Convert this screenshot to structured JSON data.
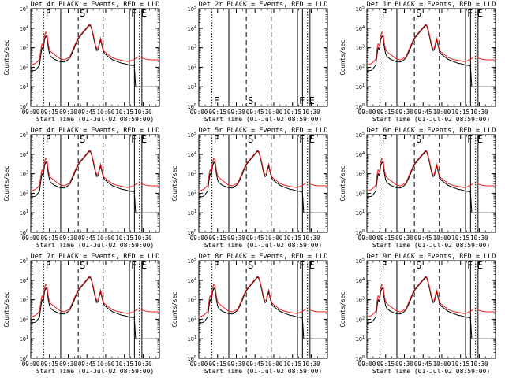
{
  "chart_data": [
    {
      "type": "line",
      "title": "Det 4r BLACK = Events, RED = LLD",
      "ylabel": "Counts/sec",
      "xlabel": "Start Time (01-Jul-02 08:59:00)",
      "has_data": true
    },
    {
      "type": "line",
      "title": "Det 2r BLACK = Events, RED = LLD",
      "ylabel": "",
      "xlabel": "Start Time (01-Jul-02 08:59:00)",
      "has_data": false
    },
    {
      "type": "line",
      "title": "Det 1r BLACK = Events, RED = LLD",
      "ylabel": "Counts/sec",
      "xlabel": "Start Time (01-Jul-02 08:59:00)",
      "has_data": true
    },
    {
      "type": "line",
      "title": "Det 4r BLACK = Events, RED = LLD",
      "ylabel": "Counts/sec",
      "xlabel": "Start Time (01-Jul-02 08:59:00)",
      "has_data": true
    },
    {
      "type": "line",
      "title": "Det 5r BLACK = Events, RED = LLD",
      "ylabel": "Counts/sec",
      "xlabel": "Start Time (01-Jul-02 08:59:00)",
      "has_data": true
    },
    {
      "type": "line",
      "title": "Det 6r BLACK = Events, RED = LLD",
      "ylabel": "Counts/sec",
      "xlabel": "Start Time (01-Jul-02 08:59:00)",
      "has_data": true
    },
    {
      "type": "line",
      "title": "Det 7r BLACK = Events, RED = LLD",
      "ylabel": "Counts/sec",
      "xlabel": "Start Time (01-Jul-02 08:59:00)",
      "has_data": true
    },
    {
      "type": "line",
      "title": "Det 8r BLACK = Events, RED = LLD",
      "ylabel": "Counts/sec",
      "xlabel": "Start Time (01-Jul-02 08:59:00)",
      "has_data": true
    },
    {
      "type": "line",
      "title": "Det 9r BLACK = Events, RED = LLD",
      "ylabel": "Counts/sec",
      "xlabel": "Start Time (01-Jul-02 08:59:00)",
      "has_data": true
    }
  ],
  "shared": {
    "xticks": [
      {
        "t": 0,
        "label": "09:00"
      },
      {
        "t": 15,
        "label": "09:15"
      },
      {
        "t": 30,
        "label": "09:30"
      },
      {
        "t": 45,
        "label": "09:45"
      },
      {
        "t": 60,
        "label": "10:00"
      },
      {
        "t": 75,
        "label": "10:15"
      },
      {
        "t": 90,
        "label": "10:30"
      }
    ],
    "xlim": [
      0,
      103
    ],
    "ylim_log10": [
      0,
      5
    ],
    "yticks": [
      {
        "e": 0,
        "label": "10^0"
      },
      {
        "e": 1,
        "label": "10^1"
      },
      {
        "e": 2,
        "label": "10^2"
      },
      {
        "e": 3,
        "label": "10^3"
      },
      {
        "e": 4,
        "label": "10^4"
      },
      {
        "e": 5,
        "label": "10^5"
      }
    ],
    "markers": [
      {
        "t": 10.5,
        "style": "dotted",
        "label": "F"
      },
      {
        "t": 24,
        "style": "solid",
        "label": ""
      },
      {
        "t": 38,
        "style": "dashed",
        "label": "S"
      },
      {
        "t": 58,
        "style": "dashed",
        "label": ""
      },
      {
        "t": 79,
        "style": "solid",
        "label": "F"
      },
      {
        "t": 83,
        "style": "solid",
        "label": ""
      },
      {
        "t": 87,
        "style": "dotted",
        "label": "E"
      },
      {
        "t": 89,
        "style": "solid",
        "label": ""
      }
    ],
    "series_colors": {
      "events": "#000000",
      "lld": "#e8201e"
    },
    "lld_series": {
      "t": [
        0,
        4,
        7,
        8,
        9,
        10,
        11,
        12,
        13,
        14,
        15,
        16,
        17,
        18,
        19,
        20,
        21,
        23,
        25,
        27,
        29,
        31,
        33,
        35,
        37,
        39,
        41,
        43,
        45,
        47,
        48,
        49,
        50,
        51,
        52,
        53,
        54,
        55,
        56,
        57,
        58,
        59,
        60,
        61,
        62,
        63,
        64,
        65,
        67,
        69,
        71,
        73,
        75,
        77,
        79,
        81,
        83,
        85,
        87,
        90,
        93,
        96,
        100,
        103
      ],
      "log10": [
        2.1,
        2.2,
        2.4,
        2.9,
        3.2,
        3.1,
        3.6,
        3.8,
        3.7,
        3.2,
        2.9,
        2.8,
        2.75,
        2.7,
        2.65,
        2.6,
        2.55,
        2.45,
        2.4,
        2.38,
        2.45,
        2.5,
        2.8,
        3.1,
        3.4,
        3.6,
        3.75,
        3.9,
        4.05,
        4.2,
        4.15,
        3.95,
        3.7,
        3.4,
        3.1,
        2.95,
        3.0,
        3.3,
        3.5,
        3.2,
        2.9,
        2.8,
        2.75,
        2.7,
        2.65,
        2.6,
        2.55,
        2.5,
        2.45,
        2.4,
        2.38,
        2.35,
        2.33,
        2.3,
        2.3,
        2.35,
        2.4,
        2.5,
        2.55,
        2.45,
        2.4,
        2.38,
        2.38,
        2.38
      ]
    },
    "events_series": {
      "t": [
        0,
        4,
        7,
        8,
        9,
        10,
        11,
        12,
        13,
        14,
        15,
        16,
        17,
        18,
        19,
        20,
        21,
        23,
        25,
        27,
        29,
        31,
        33,
        35,
        37,
        39,
        41,
        43,
        45,
        47,
        48,
        49,
        50,
        51,
        52,
        53,
        54,
        55,
        56,
        57,
        58,
        59,
        60,
        61,
        62,
        63,
        64,
        65,
        67,
        69,
        71,
        73,
        75,
        77,
        79,
        81,
        83,
        84,
        85,
        87,
        90,
        93,
        96,
        100,
        103
      ],
      "log10": [
        1.8,
        1.85,
        2.1,
        2.6,
        3.0,
        2.9,
        3.4,
        3.6,
        3.5,
        3.0,
        2.7,
        2.55,
        2.5,
        2.45,
        2.4,
        2.38,
        2.35,
        2.3,
        2.28,
        2.27,
        2.35,
        2.45,
        2.7,
        3.0,
        3.35,
        3.55,
        3.7,
        3.85,
        4.0,
        4.15,
        4.1,
        3.9,
        3.6,
        3.3,
        3.0,
        2.85,
        2.9,
        3.2,
        3.4,
        3.1,
        2.85,
        2.7,
        2.65,
        2.6,
        2.55,
        2.5,
        2.45,
        2.4,
        2.35,
        2.3,
        2.25,
        2.2,
        2.18,
        2.15,
        2.1,
        2.1,
        2.05,
        1.0,
        1.0,
        1.0,
        1.0,
        1.0,
        1.0,
        1.0,
        1.0
      ]
    }
  }
}
